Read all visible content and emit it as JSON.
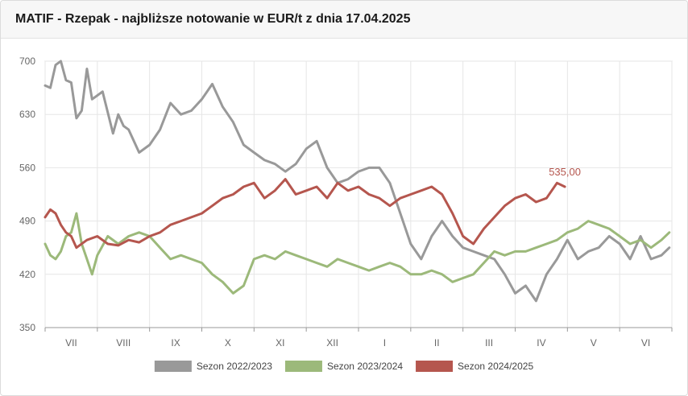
{
  "title": "MATIF - Rzepak - najbliższe notowanie w EUR/t z dnia 17.04.2025",
  "chart_data": {
    "type": "line",
    "x_categories": [
      "VII",
      "VIII",
      "IX",
      "X",
      "XI",
      "XII",
      "I",
      "II",
      "III",
      "IV",
      "V",
      "VI"
    ],
    "ylim": [
      350,
      700
    ],
    "yticks": [
      350,
      420,
      490,
      560,
      630,
      700
    ],
    "grid": true,
    "legend_position": "bottom",
    "last_value_label": "535,00",
    "series": [
      {
        "name": "Sezon 2022/2023",
        "color": "#999999",
        "x": [
          0,
          0.1,
          0.2,
          0.3,
          0.4,
          0.5,
          0.6,
          0.7,
          0.8,
          0.9,
          1.0,
          1.1,
          1.3,
          1.4,
          1.5,
          1.6,
          1.8,
          2.0,
          2.2,
          2.4,
          2.6,
          2.8,
          3.0,
          3.2,
          3.4,
          3.6,
          3.8,
          4.0,
          4.2,
          4.4,
          4.6,
          4.8,
          5.0,
          5.2,
          5.4,
          5.6,
          5.8,
          6.0,
          6.2,
          6.4,
          6.6,
          6.8,
          7.0,
          7.2,
          7.4,
          7.6,
          7.8,
          8.0,
          8.2,
          8.4,
          8.6,
          8.8,
          9.0,
          9.2,
          9.4,
          9.6,
          9.8,
          10.0,
          10.2,
          10.4,
          10.6,
          10.8,
          11.0,
          11.2,
          11.4,
          11.6,
          11.8,
          11.95
        ],
        "values": [
          668,
          665,
          695,
          700,
          675,
          672,
          625,
          635,
          690,
          650,
          655,
          660,
          605,
          630,
          615,
          610,
          580,
          590,
          610,
          645,
          630,
          635,
          650,
          670,
          640,
          620,
          590,
          580,
          570,
          565,
          555,
          565,
          585,
          595,
          560,
          540,
          545,
          555,
          560,
          560,
          540,
          500,
          460,
          440,
          470,
          490,
          470,
          455,
          450,
          445,
          440,
          420,
          395,
          405,
          385,
          420,
          440,
          465,
          440,
          450,
          455,
          470,
          460,
          440,
          470,
          440,
          445,
          455
        ]
      },
      {
        "name": "Sezon 2023/2024",
        "color": "#9cb97a",
        "x": [
          0,
          0.1,
          0.2,
          0.3,
          0.4,
          0.5,
          0.6,
          0.7,
          0.8,
          0.9,
          1.0,
          1.2,
          1.4,
          1.6,
          1.8,
          2.0,
          2.2,
          2.4,
          2.6,
          2.8,
          3.0,
          3.2,
          3.4,
          3.6,
          3.8,
          4.0,
          4.2,
          4.4,
          4.6,
          4.8,
          5.0,
          5.2,
          5.4,
          5.6,
          5.8,
          6.0,
          6.2,
          6.4,
          6.6,
          6.8,
          7.0,
          7.2,
          7.4,
          7.6,
          7.8,
          8.0,
          8.2,
          8.4,
          8.6,
          8.8,
          9.0,
          9.2,
          9.4,
          9.6,
          9.8,
          10.0,
          10.2,
          10.4,
          10.6,
          10.8,
          11.0,
          11.2,
          11.4,
          11.6,
          11.8,
          11.95
        ],
        "values": [
          460,
          445,
          440,
          450,
          470,
          475,
          500,
          460,
          440,
          420,
          445,
          470,
          460,
          470,
          475,
          470,
          455,
          440,
          445,
          440,
          435,
          420,
          410,
          395,
          405,
          440,
          445,
          440,
          450,
          445,
          440,
          435,
          430,
          440,
          435,
          430,
          425,
          430,
          435,
          430,
          420,
          420,
          425,
          420,
          410,
          415,
          420,
          435,
          450,
          445,
          450,
          450,
          455,
          460,
          465,
          475,
          480,
          490,
          485,
          480,
          470,
          460,
          465,
          455,
          465,
          475
        ]
      },
      {
        "name": "Sezon 2024/2025",
        "color": "#b5564e",
        "x": [
          0,
          0.1,
          0.2,
          0.3,
          0.4,
          0.5,
          0.6,
          0.8,
          1.0,
          1.2,
          1.4,
          1.6,
          1.8,
          2.0,
          2.2,
          2.4,
          2.6,
          2.8,
          3.0,
          3.2,
          3.4,
          3.6,
          3.8,
          4.0,
          4.2,
          4.4,
          4.6,
          4.8,
          5.0,
          5.2,
          5.4,
          5.6,
          5.8,
          6.0,
          6.2,
          6.4,
          6.6,
          6.8,
          7.0,
          7.2,
          7.4,
          7.6,
          7.8,
          8.0,
          8.2,
          8.4,
          8.6,
          8.8,
          9.0,
          9.2,
          9.4,
          9.6,
          9.8,
          9.95
        ],
        "values": [
          495,
          505,
          500,
          485,
          475,
          470,
          455,
          465,
          470,
          460,
          458,
          465,
          462,
          470,
          475,
          485,
          490,
          495,
          500,
          510,
          520,
          525,
          535,
          540,
          520,
          530,
          545,
          525,
          530,
          535,
          520,
          540,
          530,
          535,
          525,
          520,
          510,
          520,
          525,
          530,
          535,
          525,
          500,
          470,
          460,
          480,
          495,
          510,
          520,
          525,
          515,
          520,
          540,
          535
        ]
      }
    ]
  }
}
